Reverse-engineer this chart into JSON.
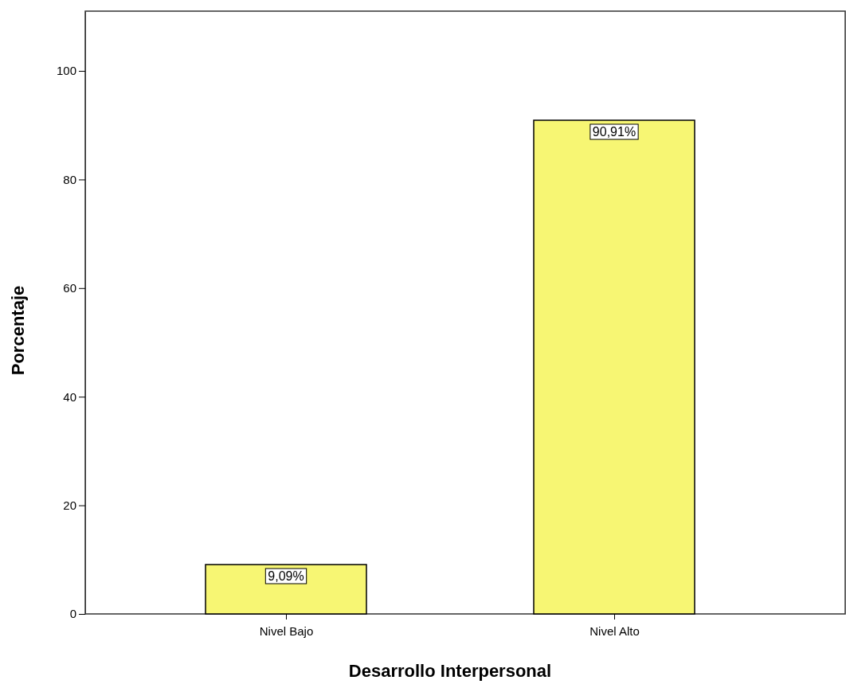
{
  "chart_data": {
    "type": "bar",
    "xlabel": "Desarrollo Interpersonal",
    "ylabel": "Porcentaje",
    "categories": [
      "Nivel Bajo",
      "Nivel Alto"
    ],
    "values": [
      9.09,
      90.91
    ],
    "value_labels": [
      "9,09%",
      "90,91%"
    ],
    "color": "#f7f673",
    "ylim": [
      0,
      111
    ],
    "yticks": [
      0,
      20,
      40,
      60,
      80,
      100
    ]
  }
}
